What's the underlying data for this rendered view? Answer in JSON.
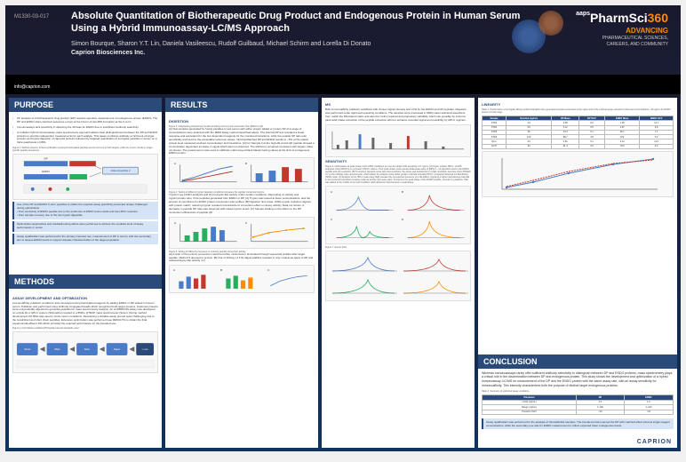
{
  "poster_id": "M1330-03-017",
  "title": "Absolute Quantitation of Biotherapeutic Drug Product and Endogenous Protein in Human Serum Using a Hybrid Immunoassay-LC/MS Approach",
  "authors": "Simon Bourque, Sharon Y.T. Lin, Daniela Vasileescu, Rudolf Guilbaud, Michael Schirm and Lorella Di Donato",
  "affiliation": "Caprion Biosciences Inc.",
  "email": "info@caprion.com",
  "brand": {
    "main": "PharmSci",
    "sup": "aaps",
    "num": "360",
    "tag1": "ADVANCING",
    "tag2": "PHARMACEUTICAL SCIENCES,",
    "tag3": "CAREERS, AND COMMUNITY"
  },
  "sections": {
    "purpose": "PURPOSE",
    "methods": "METHODS",
    "results": "RESULTS",
    "conclusion": "CONCLUSION"
  },
  "purpose": {
    "b1": "PK analysis of a biotherapeutic drug product (DP) requires sensitive measurement of endogenous protein (ENDO). The DP and ENDO share identical sequence except at the N-term & low-MW truncation at the C-term.",
    "b2": "Immunoassays lack specificity in detecting the 30 base for ENDO due to insufficient antibody selectivity.",
    "b3": "A multiplex hybrid immunoassay-mass spectrometry approach allows clear distinguishment between the DP and ENDO proteins to provide independent measurements for each analyte. This assay combines antibody enrichment of target proteins and tryptic digestion of captured proteins followed by targeted quantitation of surrogate peptides in serum on a triple quadrupole LC/MS.",
    "fig1_cap": "Figure 1. Method schema. Protein purification employed biotinylated peptides and is common to both targets, while the C-term results in target-specific peptide sequences.",
    "hb1": "Use of the DP and ENDO C-term peptides to obtain the required assay specificity presented unique challenges during optimization:",
    "hb1_sub1": "• Poor sensitivity of ENDO peptide due to the small size of ENDO amino acids and low HPLC retention",
    "hb1_sub2": "• Poor sample recovery due to the low trypsin digestible",
    "hb2": "Optimization approaches and troubleshooting efforts were performed to achieve the resultant level of assay performance in serum.",
    "hb3": "Assay qualification was performed for the primary intended use: measurement of DP in serum, with the secondary aim to assess ENDO levels to support disease characterization of the target population."
  },
  "methods": {
    "sub": "ASSAY DEVELOPMENT AND OPTIMIZATION",
    "p1": "Immunoaffinity pulldown conditions were developed using biotinylated reagents by adding ENDO or DP spiked in human serum. Pulldown was performed using antibody conjugated beads which recognized both target proteins. Captured proteins were enzymatically digested to generate peptides for mass spectrometry analysis. An LC/MRM MS assay was developed on a triple Rx α HPLC system (Shimadzu) coupled to a 6500+ QTRAP mass spectrometer (Sciex). During method development 2% BSA was used to mimic serum conditions. Developing a suitable assay proved quite challenging due to the recalcitrant and short chain peptides. Extensive optimization was performed (see RESULTS) to obtain the final experimental effluent SIS which provided the required performance for the intended use.",
    "fig2_cap": "Figure 2. [A] Pulldown workflow [B] Peptide internal standards used",
    "flow_labels": [
      "Serum + Ab beads",
      "Wash",
      "Elute",
      "Digest",
      "LC-MS/MS"
    ]
  },
  "results": {
    "digestion_sub": "DIGESTION",
    "fig3_cap": "Figure 3. Initial testing showed low overall sensitivity and very low conversion from ENDO to QP.",
    "p_dig": "[A] Test samples generated by fusing peptides to test serum with either protein added or protein-SP of a range of concentrations were analyzed with the MRM assay method described above. The internal DP test revealed a linear response and equivalent for the two dependent reagents for the monitored transitions, while the peptide SP ratio was specifically anchored to the acceptable reference values. Optimal Matched DP and ENDO results to ~5% of the spiked protein level measured at about concentration and transitions. [C] For Sample 2 at the high-dE of and QP peptide showed a concentration dependent increase in signal which was not observed. The efficiency remained consistent with targets. Data not shown. The pooled serum was used to calibrate matrix-keyed black blanks having values at the limit of endogenous ENDO protein.",
    "fig4_cap": "Figure 4. Testing of different trypsin digestion conditions increases the peptide conversion factors.",
    "p_fig4": "Trypsin may exhibit autolysis and chymotryptic-like activity under certain conditions. Depending on activity and trypsin:protein ratio, if the peptides generated from ENDO or DP, [A] Trypsin was tested at lower concentrations, and the amount of membrane for ENDO protein conversion was verified. [B] Digestion time lower. While trypsin reduction digress with protein match, reducing trypsin resulted concordance to conversion effect on decoy activity. Data not shown. A decrease in peptide DP ratio was observed with raised trypsin levels. [C] Sample loading on the effect on the DP conversion efficiencies of peptide QP.",
    "fig5_cap": "Figure 5. Testing of different processes to minimize peptide conversion activity.",
    "p_fig5": "[A] A scan of the post-tiv conversion could be further minimized or eliminated through sequential profiles after target peptide. Method 3 deemed to protein. [B] Use of 100mg LJ b 5s digest additive resulted in only modest as apply to DP and reduced decoy-like activity. [C]",
    "ms_sub": "MS",
    "p_ms": "Both immunoaffinity pulldown workflows with chosen signal intensity and LOD for the ENDO and DP peptides. Digestion was performed under approved operating conditions. The samples were processed in MilliQ water delivered elsewhere from match the MS-based matrix and also the metric required and proprietary variability which can possible by columns pack solid phase extraction of the peptide extraction effort to enhance recorded signal and possibility by HPLC regimen.",
    "sens_sub": "SENSITIVITY",
    "fig6_cap": "Figure 6. Optimization of peak shape and LC/MS conditions to meet the target LOD sensitivity of 1 ng/mL. [A] Upper surface HPLC. LC/MS analyzed using MS4/5 is on a Kinetic UHPLC column. Poor peak shape issue caused delta peak value of [MH]+2→y3 transition used in the ENDO peptide and low sensitivity. [B] To improve signal-to-noise ratio that sensitivity, the assay was transferred to a high-resolution accurate mass (HRAM) LC on the orbitrap mass spectrometer, which allows for analysis using rather gentler methods including HPLC, a targeted Selected Ion Monitoring (tSIM) mode. [C] Analysis of the HPLC peak using tSIM revealed the unexpected presence of a Na adduct. Applying a higher declustering potential in the instrument provided complete peak as activity. [D] Lower plots: To improve the peak shape of the ENDO peptide, several LC gradients, TEA was added to the mobile to ion both modified, while added an improvement in peak shape.",
    "fig7_cap": "Figure 7. Serum XICs",
    "linearity_sub": "LINEARITY",
    "table1_cap": "Table 1. Performance of surrogate affinity purified standard mass generated samples processed at the upper and of the method range selected of observed concentrations ~30 ng/mL for ENDO protein normal range.",
    "table_data": {
      "headers": [
        "Sample",
        "Nominal (ng/mL)",
        "DP Mean",
        "DP %CV",
        "ENDO Mean",
        "ENDO %CV"
      ],
      "rows": [
        [
          "STD1",
          "1.0",
          "0.98",
          "8.2",
          "1.05",
          "12.1"
        ],
        [
          "STD2",
          "5.0",
          "5.12",
          "6.5",
          "4.87",
          "9.8"
        ],
        [
          "STD3",
          "25",
          "24.3",
          "5.1",
          "26.1",
          "7.4"
        ],
        [
          "STD4",
          "100",
          "98.7",
          "4.8",
          "102",
          "6.2"
        ],
        [
          "QC-L",
          "3.0",
          "2.91",
          "9.1",
          "3.12",
          "11.5"
        ],
        [
          "QC-H",
          "80",
          "81.4",
          "5.3",
          "78.9",
          "8.0"
        ]
      ]
    }
  },
  "conclusion": {
    "p1": "Whereas immunoassays rarely offer sufficient antibody selectivity to distinguish between DP and ENDO proteins, mass spectrometry plays a critical role in the discrimination between DP and endogenous protein. This study shows the development and optimization of a hybrid immunoassay LIC/MS for measurement of the DP and the ENDO protein with the same assay rate, with an assay sensitivity for immunoaffinity. This intensity characterizes both the purpose of distinct target endogenous proteins.",
    "table2_cap": "Table 2. Summary of optimized assay conditions",
    "hb": "Assay qualification was performed for the analysis of clinical/deficit samples. The intended protein served the DP with matched effect sized at single reagent concentrations, while the secondary use was for ENDO measurement to collect expected lower endogenous levels."
  },
  "footer_logo": "CAPRION",
  "colors": {
    "accent": "#2a4a7a",
    "highlight_bg": "#d4e3f5",
    "chart_blue": "#4a7bc8",
    "chart_red": "#c0392b",
    "chart_green": "#27ae60",
    "chart_orange": "#ff8c00"
  },
  "shared_peptide_label": "shared peptide 2",
  "dp_label": "DP",
  "endo_label": "ENDO"
}
